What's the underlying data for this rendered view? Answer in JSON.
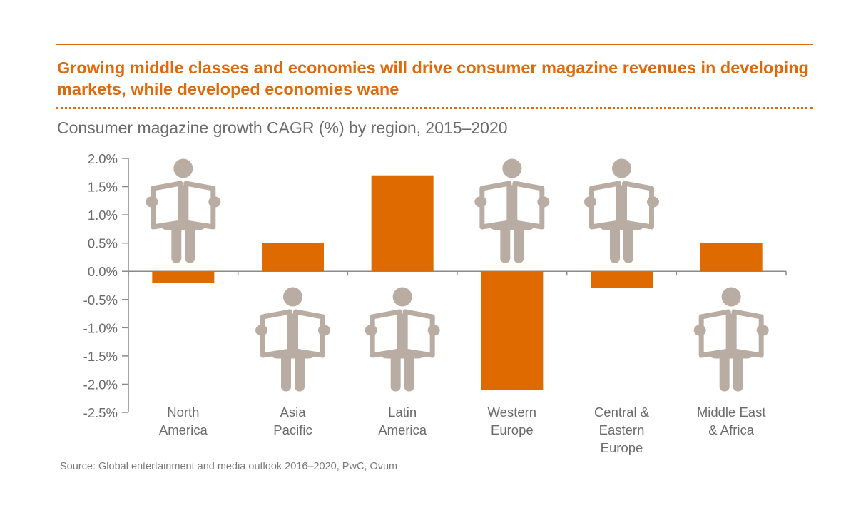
{
  "headline": "Growing middle classes and economies will drive consumer magazine revenues in developing markets, while developed economies wane",
  "subtitle": "Consumer magazine growth CAGR (%) by region, 2015–2020",
  "source": "Source: Global entertainment and media outlook 2016–2020, PwC, Ovum",
  "colors": {
    "accent": "#e0690b",
    "bar": "#df6a00",
    "figure": "#b9ada3",
    "axis": "#8a8a8a",
    "text": "#6b6b6b"
  },
  "icon": "person-reading-newspaper-icon",
  "chart_data": {
    "type": "bar",
    "title": "Consumer magazine growth CAGR (%) by region, 2015–2020",
    "categories": [
      [
        "North",
        "America"
      ],
      [
        "Asia",
        "Pacific"
      ],
      [
        "Latin",
        "America"
      ],
      [
        "Western",
        "Europe"
      ],
      [
        "Central &",
        "Eastern",
        "Europe"
      ],
      [
        "Middle East",
        "& Africa"
      ]
    ],
    "values": [
      -0.2,
      0.5,
      1.7,
      -2.1,
      -0.3,
      0.5
    ],
    "ylim": [
      -2.5,
      2.0
    ],
    "yticks": [
      2.0,
      1.5,
      1.0,
      0.5,
      0.0,
      -0.5,
      -1.0,
      -1.5,
      -2.0,
      -2.5
    ],
    "ytick_labels": [
      "2.0%",
      "1.5%",
      "1.0%",
      "0.5%",
      "0.0%",
      "-0.5%",
      "-1.0%",
      "-1.5%",
      "-2.0%",
      "-2.5%"
    ],
    "grid": false,
    "legend": "none"
  }
}
